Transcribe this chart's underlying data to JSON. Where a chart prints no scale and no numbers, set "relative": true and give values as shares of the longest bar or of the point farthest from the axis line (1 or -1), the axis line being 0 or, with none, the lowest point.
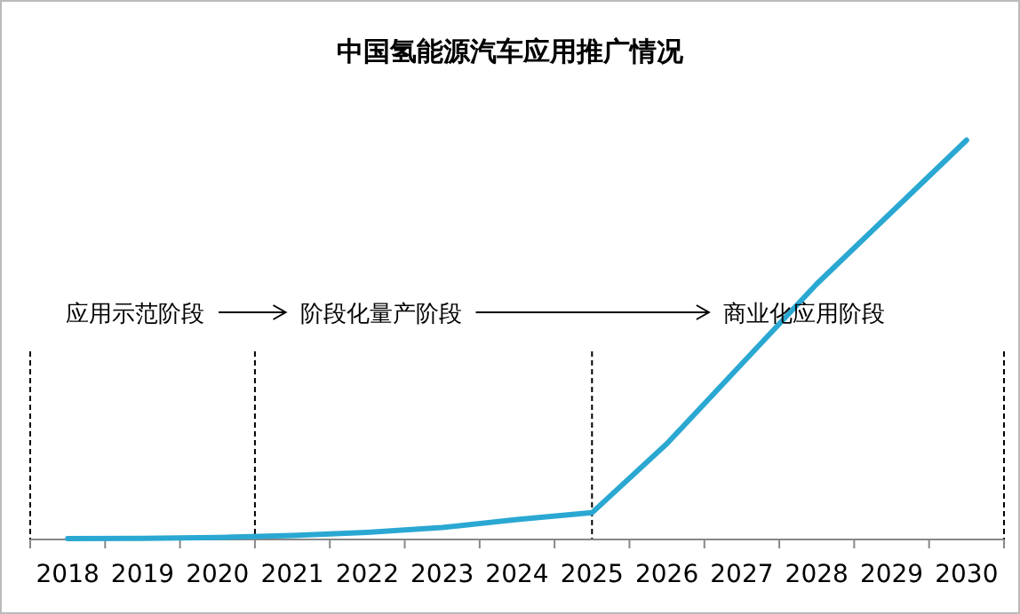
{
  "chart_data": {
    "type": "line",
    "title": "中国氢能源汽车应用推广情况",
    "relative": true,
    "x": [
      2018,
      2019,
      2020,
      2021,
      2022,
      2023,
      2024,
      2025,
      2026,
      2027,
      2028,
      2029,
      2030
    ],
    "xlim": [
      2017.5,
      2030.5
    ],
    "xticks": [
      2018,
      2019,
      2020,
      2021,
      2022,
      2023,
      2024,
      2025,
      2026,
      2027,
      2028,
      2029,
      2030
    ],
    "series": [
      {
        "color": "#2aa8d2",
        "values": [
          0.002,
          0.003,
          0.005,
          0.01,
          0.018,
          0.03,
          0.05,
          0.067,
          0.24,
          0.44,
          0.64,
          0.82,
          1.0
        ]
      }
    ],
    "annotations": [
      "应用示范阶段",
      "阶段化量产阶段",
      "商业化应用阶段"
    ],
    "ref_lines": [
      {
        "axis": "x",
        "value": 2017.5,
        "color": "#000000",
        "line_style": "dashed"
      },
      {
        "axis": "x",
        "value": 2020.5,
        "color": "#000000",
        "line_style": "dashed"
      },
      {
        "axis": "x",
        "value": 2025,
        "color": "#000000",
        "line_style": "dashed"
      },
      {
        "axis": "x",
        "value": 2030.5,
        "color": "#000000",
        "line_style": "dashed"
      }
    ],
    "grid": false,
    "line_style": "solid"
  }
}
